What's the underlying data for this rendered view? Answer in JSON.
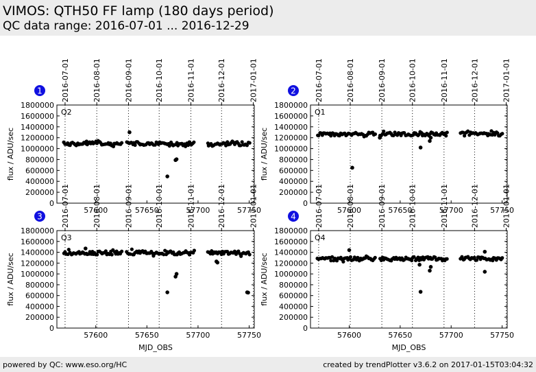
{
  "header": {
    "title": "VIMOS: QTH50 FF lamp (180 days period)",
    "subtitle": "QC data range: 2016-07-01 ... 2016-12-29"
  },
  "footer": {
    "left": "powered by QC: www.eso.org/HC",
    "right": "created by trendPlotter v3.6.2 on 2017-01-15T03:04:32"
  },
  "colors": {
    "marker": "#000000",
    "badge": "#1010e0",
    "header_bg": "#ececec"
  },
  "chart_data": [
    {
      "type": "scatter",
      "badge": "1",
      "label": "Q2",
      "xlabel": "",
      "ylabel": "flux / ADU/sec",
      "xlim": [
        57562,
        57755
      ],
      "ylim": [
        0,
        1800000
      ],
      "xticks": [
        57600,
        57650,
        57700,
        57750
      ],
      "yticks": [
        0,
        200000,
        400000,
        600000,
        800000,
        1000000,
        1200000,
        1400000,
        1600000,
        1800000
      ],
      "date_ticks": [
        "2016-07-01",
        "2016-08-01",
        "2016-09-01",
        "2016-10-01",
        "2016-11-01",
        "2016-12-01",
        "2017-01-01"
      ],
      "date_mjd": [
        57570,
        57601,
        57632,
        57662,
        57693,
        57723,
        57754
      ],
      "series": [
        {
          "baseline": 1090000,
          "gaps": [
            [
              57626,
              57630
            ],
            [
              57697,
              57709
            ]
          ],
          "outliers": [
            [
              57633,
              1300000
            ],
            [
              57670,
              490000
            ],
            [
              57678,
              790000
            ],
            [
              57679,
              805000
            ],
            [
              57591,
              1130000
            ]
          ]
        }
      ]
    },
    {
      "type": "scatter",
      "badge": "2",
      "label": "Q1",
      "xlabel": "",
      "ylabel": "flux / ADU/sec",
      "xlim": [
        57562,
        57755
      ],
      "ylim": [
        0,
        1800000
      ],
      "xticks": [
        57600,
        57650,
        57700,
        57750
      ],
      "yticks": [
        0,
        200000,
        400000,
        600000,
        800000,
        1000000,
        1200000,
        1400000,
        1600000,
        1800000
      ],
      "date_ticks": [
        "2016-07-01",
        "2016-08-01",
        "2016-09-01",
        "2016-10-01",
        "2016-11-01",
        "2016-12-01",
        "2017-01-01"
      ],
      "date_mjd": [
        57570,
        57601,
        57632,
        57662,
        57693,
        57723,
        57754
      ],
      "series": [
        {
          "baseline": 1270000,
          "gaps": [
            [
              57626,
              57630
            ],
            [
              57697,
              57709
            ]
          ],
          "outliers": [
            [
              57603,
              650000
            ],
            [
              57670,
              1020000
            ],
            [
              57630,
              1200000
            ],
            [
              57679,
              1140000
            ],
            [
              57680,
              1200000
            ]
          ]
        }
      ]
    },
    {
      "type": "scatter",
      "badge": "3",
      "label": "Q3",
      "xlabel": "MJD_OBS",
      "ylabel": "flux / ADU/sec",
      "xlim": [
        57562,
        57755
      ],
      "ylim": [
        0,
        1800000
      ],
      "xticks": [
        57600,
        57650,
        57700,
        57750
      ],
      "yticks": [
        0,
        200000,
        400000,
        600000,
        800000,
        1000000,
        1200000,
        1400000,
        1600000,
        1800000
      ],
      "date_ticks": [
        "2016-07-01",
        "2016-08-01",
        "2016-09-01",
        "2016-10-01",
        "2016-11-01",
        "2016-12-01",
        "2017-01-01"
      ],
      "date_mjd": [
        57570,
        57601,
        57632,
        57662,
        57693,
        57723,
        57754
      ],
      "series": [
        {
          "baseline": 1390000,
          "gaps": [
            [
              57626,
              57630
            ],
            [
              57697,
              57709
            ]
          ],
          "outliers": [
            [
              57590,
              1470000
            ],
            [
              57670,
              660000
            ],
            [
              57678,
              950000
            ],
            [
              57679,
              1000000
            ],
            [
              57718,
              1230000
            ],
            [
              57719,
              1210000
            ],
            [
              57748,
              660000
            ],
            [
              57749,
              655000
            ]
          ]
        }
      ]
    },
    {
      "type": "scatter",
      "badge": "4",
      "label": "Q4",
      "xlabel": "MJD_OBS",
      "ylabel": "flux / ADU/sec",
      "xlim": [
        57562,
        57755
      ],
      "ylim": [
        0,
        1800000
      ],
      "xticks": [
        57600,
        57650,
        57700,
        57750
      ],
      "yticks": [
        0,
        200000,
        400000,
        600000,
        800000,
        1000000,
        1200000,
        1400000,
        1600000,
        1800000
      ],
      "date_ticks": [
        "2016-07-01",
        "2016-08-01",
        "2016-09-01",
        "2016-10-01",
        "2016-11-01",
        "2016-12-01",
        "2017-01-01"
      ],
      "date_mjd": [
        57570,
        57601,
        57632,
        57662,
        57693,
        57723,
        57754
      ],
      "series": [
        {
          "baseline": 1280000,
          "gaps": [
            [
              57626,
              57630
            ],
            [
              57697,
              57709
            ]
          ],
          "outliers": [
            [
              57600,
              1440000
            ],
            [
              57670,
              670000
            ],
            [
              57669,
              1170000
            ],
            [
              57679,
              1060000
            ],
            [
              57680,
              1130000
            ],
            [
              57733,
              1410000
            ],
            [
              57733,
              1040000
            ]
          ]
        }
      ]
    }
  ]
}
